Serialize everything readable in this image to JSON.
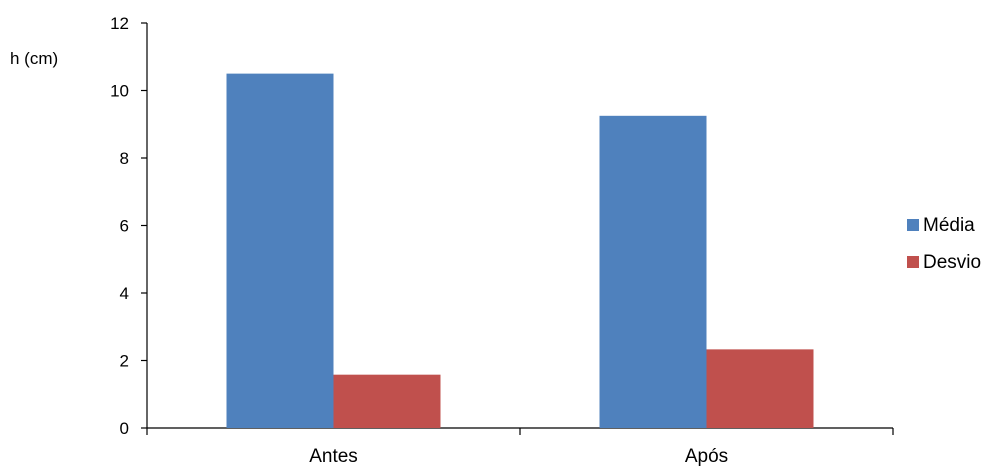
{
  "chart_data": {
    "type": "bar",
    "ylabel": "h (cm)",
    "categories": [
      "Antes",
      "Após"
    ],
    "series": [
      {
        "name": "Média",
        "values": [
          10.5,
          9.25
        ],
        "color": "#4F81BD"
      },
      {
        "name": "Desvio",
        "values": [
          1.58,
          2.33
        ],
        "color": "#C0504D"
      }
    ],
    "ylim": [
      0,
      12
    ],
    "yticks": [
      0,
      2,
      4,
      6,
      8,
      10,
      12
    ],
    "grid": false,
    "legend": "right"
  }
}
